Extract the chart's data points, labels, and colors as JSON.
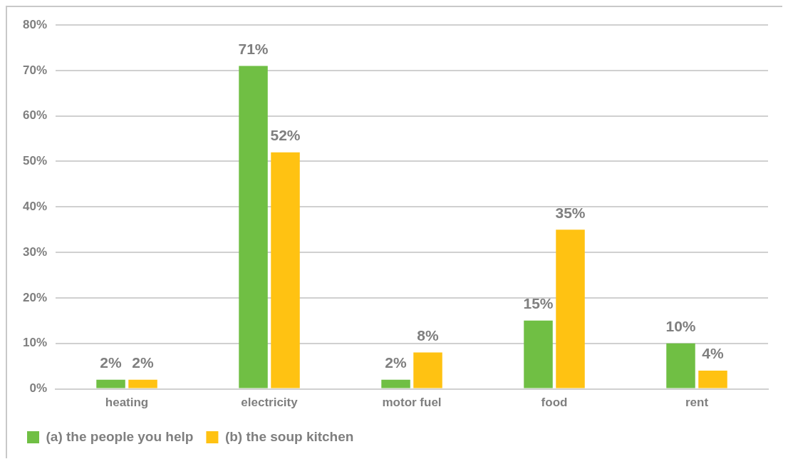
{
  "chart_data": {
    "type": "bar",
    "categories": [
      "heating",
      "electricity",
      "motor fuel",
      "food",
      "rent"
    ],
    "series": [
      {
        "name": "(a) the people you help",
        "color": "#70bf44",
        "values": [
          2,
          71,
          2,
          15,
          10
        ],
        "value_labels": [
          "2%",
          "71%",
          "2%",
          "15%",
          "10%"
        ]
      },
      {
        "name": "(b) the soup kitchen",
        "color": "#ffc212",
        "values": [
          2,
          52,
          8,
          35,
          4
        ],
        "value_labels": [
          "2%",
          "52%",
          "8%",
          "35%",
          "4%"
        ]
      }
    ],
    "ylim": [
      0,
      80
    ],
    "yticks": [
      {
        "value": 0,
        "label": "0%"
      },
      {
        "value": 10,
        "label": "10%"
      },
      {
        "value": 20,
        "label": "20%"
      },
      {
        "value": 30,
        "label": "30%"
      },
      {
        "value": 40,
        "label": "40%"
      },
      {
        "value": 50,
        "label": "50%"
      },
      {
        "value": 60,
        "label": "60%"
      },
      {
        "value": 70,
        "label": "70%"
      },
      {
        "value": 80,
        "label": "80%"
      }
    ],
    "grid": "y",
    "legend": "bottom left"
  }
}
